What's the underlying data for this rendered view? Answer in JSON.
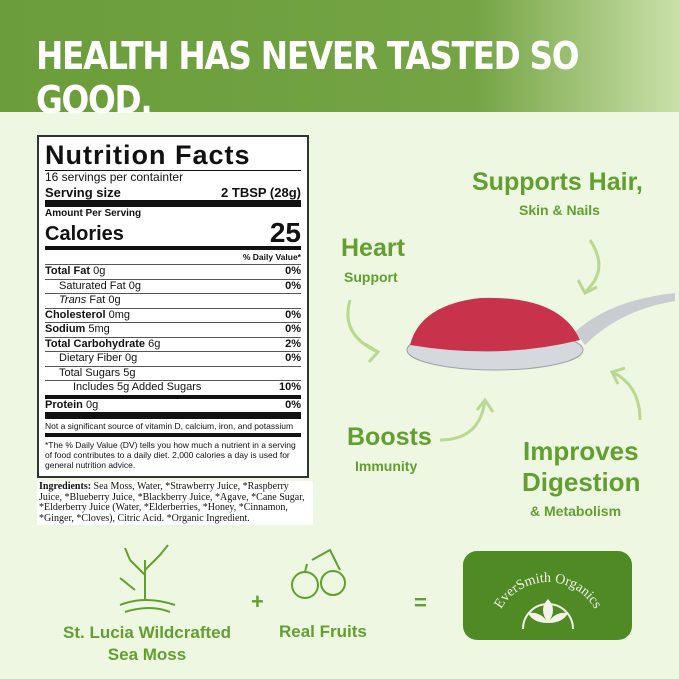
{
  "header": {
    "title": "HEALTH HAS NEVER TASTED SO GOOD."
  },
  "nutrition": {
    "title": "Nutrition Facts",
    "servings": "16 servings per containter",
    "serving_size_label": "Serving size",
    "serving_size_value": "2 TBSP (28g)",
    "amount_per_serving": "Amount Per Serving",
    "calories_label": "Calories",
    "calories_value": "25",
    "dv_header": "% Daily Value*",
    "rows": [
      {
        "label": "Total Fat",
        "amount": "0g",
        "dv": "0%",
        "bold": true,
        "indent": 0
      },
      {
        "label": "Saturated Fat",
        "amount": "0g",
        "dv": "0%",
        "bold": false,
        "indent": 1
      },
      {
        "label": "Trans",
        "amount": "Fat 0g",
        "dv": "",
        "bold": false,
        "indent": 1
      },
      {
        "label": "Cholesterol",
        "amount": "0mg",
        "dv": "0%",
        "bold": true,
        "indent": 0
      },
      {
        "label": "Sodium",
        "amount": "5mg",
        "dv": "0%",
        "bold": true,
        "indent": 0
      },
      {
        "label": "Total Carbohydrate",
        "amount": "6g",
        "dv": "2%",
        "bold": true,
        "indent": 0
      },
      {
        "label": "Dietary Fiber",
        "amount": "0g",
        "dv": "0%",
        "bold": false,
        "indent": 1
      },
      {
        "label": "Total Sugars",
        "amount": "5g",
        "dv": "",
        "bold": false,
        "indent": 1
      },
      {
        "label": "Includes 5g Added Sugars",
        "amount": "",
        "dv": "10%",
        "bold": false,
        "indent": 2
      },
      {
        "label": "Protein",
        "amount": "0g",
        "dv": "0%",
        "bold": true,
        "indent": 0
      }
    ],
    "not_significant": "Not a significant source of vitamin D, calcium, iron, and potassium",
    "footnote": "*The % Daily Value (DV) tells you how much a nutrient in a serving of food contributes to a daily diet. 2,000 calories a day is used for general nutrition advice."
  },
  "ingredients": {
    "label": "Ingredients:",
    "text": " Sea Moss, Water, *Strawberry Juice, *Raspberry Juice, *Blueberry Juice, *Blackberry Juice, *Agave, *Cane Sugar, *Elderberry Juice (Water, *Elderberries, *Honey, *Cinnamon, *Ginger, *Cloves), Citric Acid. *Organic Ingredient."
  },
  "benefits": {
    "hair": {
      "title": "Supports Hair,",
      "sub": "Skin & Nails"
    },
    "heart": {
      "title": "Heart",
      "sub": "Support"
    },
    "immunity": {
      "title": "Boosts",
      "sub": "Immunity"
    },
    "digestion": {
      "title1": "Improves",
      "title2": "Digestion",
      "sub": "& Metabolism"
    }
  },
  "equation": {
    "sea_moss": "St. Lucia Wildcrafted Sea Moss",
    "plus": "+",
    "fruits": "Real Fruits",
    "equals": "=",
    "brand": "EverSmith Organics"
  },
  "colors": {
    "accent": "#629f30",
    "header": "#6b9d3a",
    "logo_bg": "#4f8a24",
    "gel": "#c8324a"
  }
}
